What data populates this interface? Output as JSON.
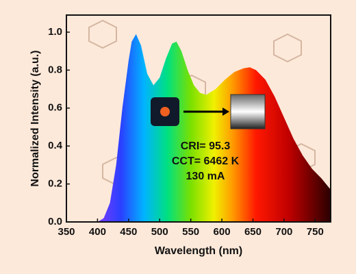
{
  "chart_data": {
    "type": "area",
    "x_label": "Wavelength (nm)",
    "y_label": "Normalized Intensity (a.u.)",
    "annotations": [
      "CRI= 95.3",
      "CCT= 6462 K",
      "130 mA"
    ],
    "x": [
      400,
      410,
      420,
      430,
      440,
      450,
      455,
      462,
      470,
      480,
      490,
      500,
      510,
      520,
      527,
      535,
      545,
      555,
      565,
      575,
      590,
      605,
      620,
      635,
      645,
      655,
      670,
      685,
      700,
      715,
      730,
      745,
      760,
      775
    ],
    "values": [
      0,
      0.02,
      0.1,
      0.3,
      0.6,
      0.85,
      0.95,
      0.99,
      0.93,
      0.78,
      0.72,
      0.76,
      0.86,
      0.94,
      0.95,
      0.9,
      0.8,
      0.72,
      0.68,
      0.67,
      0.7,
      0.75,
      0.79,
      0.81,
      0.815,
      0.8,
      0.75,
      0.66,
      0.55,
      0.44,
      0.35,
      0.28,
      0.23,
      0.17
    ],
    "xlim": [
      350,
      775
    ],
    "ylim": [
      0,
      1.09
    ],
    "xticks": [
      350,
      400,
      450,
      500,
      550,
      600,
      650,
      700,
      750
    ],
    "yticks": [
      {
        "value": 0,
        "label": "0.0"
      },
      0.2,
      0.4,
      0.6,
      0.8,
      {
        "value": 1,
        "label": "1.0"
      }
    ]
  }
}
